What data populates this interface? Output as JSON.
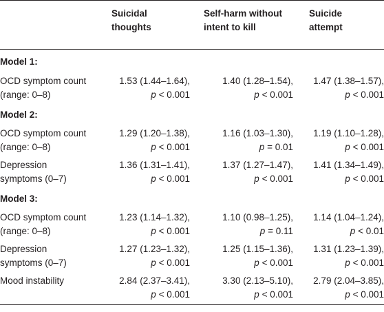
{
  "header": {
    "col0": "",
    "col1_line1": "Suicidal",
    "col1_line2": "thoughts",
    "col2_line1": "Self-harm without",
    "col2_line2": "intent to kill",
    "col3_line1": "Suicide",
    "col3_line2": "attempt"
  },
  "models": [
    {
      "title": "Model 1:",
      "rows": [
        {
          "label1": "OCD symptom count",
          "label2": "(range: 0–8)",
          "v1a": "1.53 (1.44–1.64),",
          "v1b": "< 0.001",
          "v2a": "1.40 (1.28–1.54),",
          "v2b": "< 0.001",
          "v3a": "1.47 (1.38–1.57),",
          "v3b": "< 0.001"
        }
      ]
    },
    {
      "title": "Model 2:",
      "rows": [
        {
          "label1": "OCD symptom count",
          "label2": "(range: 0–8)",
          "v1a": "1.29 (1.20–1.38),",
          "v1b": "< 0.001",
          "v2a": "1.16 (1.03–1.30),",
          "v2b": "= 0.01",
          "v3a": "1.19 (1.10–1.28),",
          "v3b": "< 0.001"
        },
        {
          "label1": "Depression",
          "label2": "symptoms (0–7)",
          "v1a": "1.36 (1.31–1.41),",
          "v1b": "< 0.001",
          "v2a": "1.37 (1.27–1.47),",
          "v2b": "< 0.001",
          "v3a": "1.41 (1.34–1.49),",
          "v3b": "< 0.001"
        }
      ]
    },
    {
      "title": "Model 3:",
      "rows": [
        {
          "label1": "OCD symptom count",
          "label2": "(range: 0–8)",
          "v1a": "1.23 (1.14–1.32),",
          "v1b": "< 0.001",
          "v2a": "1.10 (0.98–1.25),",
          "v2b": "= 0.11",
          "v3a": "1.14 (1.04–1.24),",
          "v3b": "< 0.01"
        },
        {
          "label1": "Depression",
          "label2": "symptoms (0–7)",
          "v1a": "1.27 (1.23–1.32),",
          "v1b": "< 0.001",
          "v2a": "1.25 (1.15–1.36),",
          "v2b": "< 0.001",
          "v3a": "1.31 (1.23–1.39),",
          "v3b": "< 0.001"
        },
        {
          "label1": "Mood instability",
          "label2": "",
          "v1a": "2.84 (2.37–3.41),",
          "v1b": "< 0.001",
          "v2a": "3.30 (2.13–5.10),",
          "v2b": "< 0.001",
          "v3a": "2.79 (2.04–3.85),",
          "v3b": "< 0.001"
        }
      ]
    }
  ],
  "p_symbol": "p"
}
